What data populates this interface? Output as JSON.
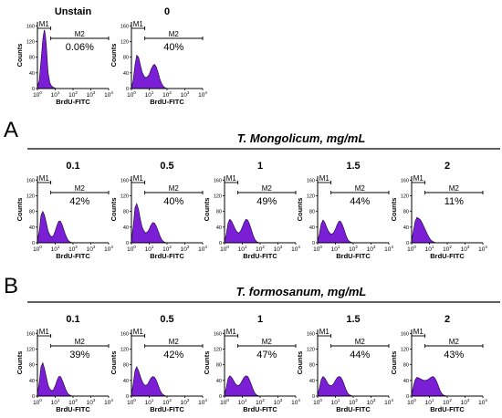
{
  "section_a": {
    "letter": "A",
    "title": "T. Mongolicum, mg/mL"
  },
  "section_b": {
    "letter": "B",
    "title": "T. formosanum, mg/mL"
  },
  "axes": {
    "xlabel": "BrdU-FITC",
    "ylabel": "Counts",
    "yticks": [
      "0",
      "40",
      "80",
      "120",
      "160"
    ],
    "xtick_base": "10",
    "xtick_exponents": [
      "0",
      "1",
      "2",
      "3",
      "4"
    ],
    "ylim": [
      0,
      170
    ],
    "xlim_log10": [
      0,
      4
    ]
  },
  "colors": {
    "fill": "#7a1fd6",
    "outline": "#1a0033",
    "rule": "#000000"
  },
  "chart_data": [
    {
      "type": "area",
      "row": "top",
      "title": "Unstain",
      "markers": [
        {
          "name": "M1",
          "range_log10": [
            0,
            0.75
          ]
        },
        {
          "name": "M2",
          "range_log10": [
            0.75,
            4
          ]
        }
      ],
      "m2_percent": "0.06%",
      "histogram": {
        "x_log10": [
          0,
          0.1,
          0.2,
          0.3,
          0.35,
          0.4,
          0.45,
          0.5,
          0.55,
          0.6,
          0.7,
          0.8,
          0.9,
          1.0,
          1.1,
          1.2
        ],
        "counts": [
          5,
          20,
          70,
          125,
          140,
          150,
          135,
          110,
          75,
          40,
          15,
          6,
          3,
          1,
          0,
          0
        ]
      }
    },
    {
      "type": "area",
      "row": "top",
      "title": "0",
      "markers": [
        {
          "name": "M1",
          "range_log10": [
            0,
            0.75
          ]
        },
        {
          "name": "M2",
          "range_log10": [
            0.75,
            4
          ]
        }
      ],
      "m2_percent": "40%",
      "histogram": {
        "x_log10": [
          0,
          0.1,
          0.2,
          0.3,
          0.4,
          0.5,
          0.6,
          0.7,
          0.8,
          0.9,
          1.0,
          1.1,
          1.2,
          1.3,
          1.4,
          1.5,
          1.6,
          1.7,
          1.8,
          1.9,
          2.0,
          2.1
        ],
        "counts": [
          3,
          20,
          60,
          85,
          80,
          60,
          42,
          32,
          28,
          30,
          36,
          48,
          58,
          62,
          55,
          40,
          24,
          12,
          5,
          2,
          0,
          0
        ]
      }
    },
    {
      "type": "area",
      "row": "A",
      "title": "0.1",
      "markers": [
        {
          "name": "M1",
          "range_log10": [
            0,
            0.75
          ]
        },
        {
          "name": "M2",
          "range_log10": [
            0.75,
            4
          ]
        }
      ],
      "m2_percent": "42%",
      "histogram": {
        "x_log10": [
          0,
          0.1,
          0.2,
          0.3,
          0.4,
          0.5,
          0.6,
          0.7,
          0.8,
          0.9,
          1.0,
          1.1,
          1.2,
          1.3,
          1.4,
          1.5,
          1.6,
          1.7,
          1.8,
          1.9,
          2.0
        ],
        "counts": [
          5,
          30,
          70,
          80,
          70,
          50,
          30,
          20,
          15,
          18,
          30,
          45,
          55,
          55,
          45,
          30,
          18,
          8,
          3,
          1,
          0
        ]
      }
    },
    {
      "type": "area",
      "row": "A",
      "title": "0.5",
      "markers": [
        {
          "name": "M1",
          "range_log10": [
            0,
            0.75
          ]
        },
        {
          "name": "M2",
          "range_log10": [
            0.75,
            4
          ]
        }
      ],
      "m2_percent": "40%",
      "histogram": {
        "x_log10": [
          0,
          0.1,
          0.2,
          0.3,
          0.4,
          0.5,
          0.6,
          0.7,
          0.8,
          0.9,
          1.0,
          1.1,
          1.2,
          1.3,
          1.4,
          1.5,
          1.6,
          1.7,
          1.8,
          1.9,
          2.0
        ],
        "counts": [
          5,
          40,
          90,
          100,
          85,
          60,
          40,
          30,
          25,
          28,
          35,
          45,
          52,
          50,
          42,
          30,
          18,
          8,
          3,
          1,
          0
        ]
      }
    },
    {
      "type": "area",
      "row": "A",
      "title": "1",
      "markers": [
        {
          "name": "M1",
          "range_log10": [
            0,
            0.75
          ]
        },
        {
          "name": "M2",
          "range_log10": [
            0.75,
            4
          ]
        }
      ],
      "m2_percent": "49%",
      "histogram": {
        "x_log10": [
          0,
          0.1,
          0.2,
          0.3,
          0.4,
          0.5,
          0.6,
          0.7,
          0.8,
          0.9,
          1.0,
          1.1,
          1.2,
          1.3,
          1.4,
          1.5,
          1.6,
          1.7,
          1.8,
          1.9,
          2.0
        ],
        "counts": [
          4,
          22,
          50,
          60,
          55,
          45,
          35,
          28,
          25,
          30,
          40,
          52,
          60,
          58,
          48,
          34,
          20,
          9,
          3,
          1,
          0
        ]
      }
    },
    {
      "type": "area",
      "row": "A",
      "title": "1.5",
      "markers": [
        {
          "name": "M1",
          "range_log10": [
            0,
            0.75
          ]
        },
        {
          "name": "M2",
          "range_log10": [
            0.75,
            4
          ]
        }
      ],
      "m2_percent": "44%",
      "histogram": {
        "x_log10": [
          0,
          0.1,
          0.2,
          0.3,
          0.4,
          0.5,
          0.6,
          0.7,
          0.8,
          0.9,
          1.0,
          1.1,
          1.2,
          1.3,
          1.4,
          1.5,
          1.6,
          1.7,
          1.8,
          1.9,
          2.0
        ],
        "counts": [
          4,
          22,
          48,
          58,
          52,
          40,
          30,
          24,
          22,
          26,
          35,
          46,
          55,
          54,
          45,
          32,
          18,
          8,
          3,
          1,
          0
        ]
      }
    },
    {
      "type": "area",
      "row": "A",
      "title": "2",
      "markers": [
        {
          "name": "M1",
          "range_log10": [
            0,
            0.75
          ]
        },
        {
          "name": "M2",
          "range_log10": [
            0.75,
            4
          ]
        }
      ],
      "m2_percent": "11%",
      "histogram": {
        "x_log10": [
          0,
          0.1,
          0.2,
          0.3,
          0.4,
          0.5,
          0.6,
          0.7,
          0.8,
          0.9,
          1.0,
          1.1,
          1.2,
          1.3,
          1.4,
          1.5
        ],
        "counts": [
          6,
          30,
          55,
          65,
          62,
          58,
          50,
          40,
          30,
          20,
          12,
          6,
          3,
          1,
          0,
          0
        ]
      }
    },
    {
      "type": "area",
      "row": "B",
      "title": "0.1",
      "markers": [
        {
          "name": "M1",
          "range_log10": [
            0,
            0.75
          ]
        },
        {
          "name": "M2",
          "range_log10": [
            0.75,
            4
          ]
        }
      ],
      "m2_percent": "39%",
      "histogram": {
        "x_log10": [
          0,
          0.1,
          0.2,
          0.3,
          0.4,
          0.5,
          0.6,
          0.7,
          0.8,
          0.9,
          1.0,
          1.1,
          1.2,
          1.3,
          1.4,
          1.5,
          1.6,
          1.7,
          1.8,
          1.9,
          2.0
        ],
        "counts": [
          5,
          35,
          75,
          85,
          70,
          48,
          28,
          18,
          14,
          16,
          26,
          40,
          50,
          50,
          40,
          28,
          16,
          7,
          3,
          1,
          0
        ]
      }
    },
    {
      "type": "area",
      "row": "B",
      "title": "0.5",
      "markers": [
        {
          "name": "M1",
          "range_log10": [
            0,
            0.75
          ]
        },
        {
          "name": "M2",
          "range_log10": [
            0.75,
            4
          ]
        }
      ],
      "m2_percent": "42%",
      "histogram": {
        "x_log10": [
          0,
          0.1,
          0.2,
          0.3,
          0.4,
          0.5,
          0.6,
          0.7,
          0.8,
          0.9,
          1.0,
          1.1,
          1.2,
          1.3,
          1.4,
          1.5,
          1.6,
          1.7,
          1.8,
          1.9,
          2.0
        ],
        "counts": [
          5,
          30,
          65,
          75,
          65,
          50,
          38,
          30,
          27,
          30,
          38,
          46,
          50,
          48,
          40,
          28,
          16,
          7,
          3,
          1,
          0
        ]
      }
    },
    {
      "type": "area",
      "row": "B",
      "title": "1",
      "markers": [
        {
          "name": "M1",
          "range_log10": [
            0,
            0.75
          ]
        },
        {
          "name": "M2",
          "range_log10": [
            0.75,
            4
          ]
        }
      ],
      "m2_percent": "47%",
      "histogram": {
        "x_log10": [
          0,
          0.1,
          0.2,
          0.3,
          0.4,
          0.5,
          0.6,
          0.7,
          0.8,
          0.9,
          1.0,
          1.1,
          1.2,
          1.3,
          1.4,
          1.5,
          1.6,
          1.7,
          1.8,
          1.9,
          2.0
        ],
        "counts": [
          4,
          22,
          45,
          52,
          48,
          40,
          32,
          28,
          27,
          32,
          40,
          48,
          52,
          50,
          42,
          30,
          18,
          8,
          3,
          1,
          0
        ]
      }
    },
    {
      "type": "area",
      "row": "B",
      "title": "1.5",
      "markers": [
        {
          "name": "M1",
          "range_log10": [
            0,
            0.75
          ]
        },
        {
          "name": "M2",
          "range_log10": [
            0.75,
            4
          ]
        }
      ],
      "m2_percent": "44%",
      "histogram": {
        "x_log10": [
          0,
          0.1,
          0.2,
          0.3,
          0.4,
          0.5,
          0.6,
          0.7,
          0.8,
          0.9,
          1.0,
          1.1,
          1.2,
          1.3,
          1.4,
          1.5,
          1.6,
          1.7,
          1.8,
          1.9,
          2.0
        ],
        "counts": [
          4,
          20,
          42,
          50,
          46,
          38,
          30,
          27,
          27,
          32,
          40,
          47,
          50,
          48,
          40,
          28,
          16,
          7,
          3,
          1,
          0
        ]
      }
    },
    {
      "type": "area",
      "row": "B",
      "title": "2",
      "markers": [
        {
          "name": "M1",
          "range_log10": [
            0,
            0.75
          ]
        },
        {
          "name": "M2",
          "range_log10": [
            0.75,
            4
          ]
        }
      ],
      "m2_percent": "43%",
      "histogram": {
        "x_log10": [
          0,
          0.1,
          0.2,
          0.3,
          0.4,
          0.5,
          0.6,
          0.7,
          0.8,
          0.9,
          1.0,
          1.1,
          1.2,
          1.3,
          1.4,
          1.5,
          1.6,
          1.7,
          1.8,
          1.9,
          2.0
        ],
        "counts": [
          4,
          25,
          42,
          48,
          46,
          44,
          42,
          40,
          40,
          42,
          45,
          48,
          50,
          46,
          38,
          26,
          14,
          6,
          2,
          1,
          0
        ]
      }
    }
  ]
}
